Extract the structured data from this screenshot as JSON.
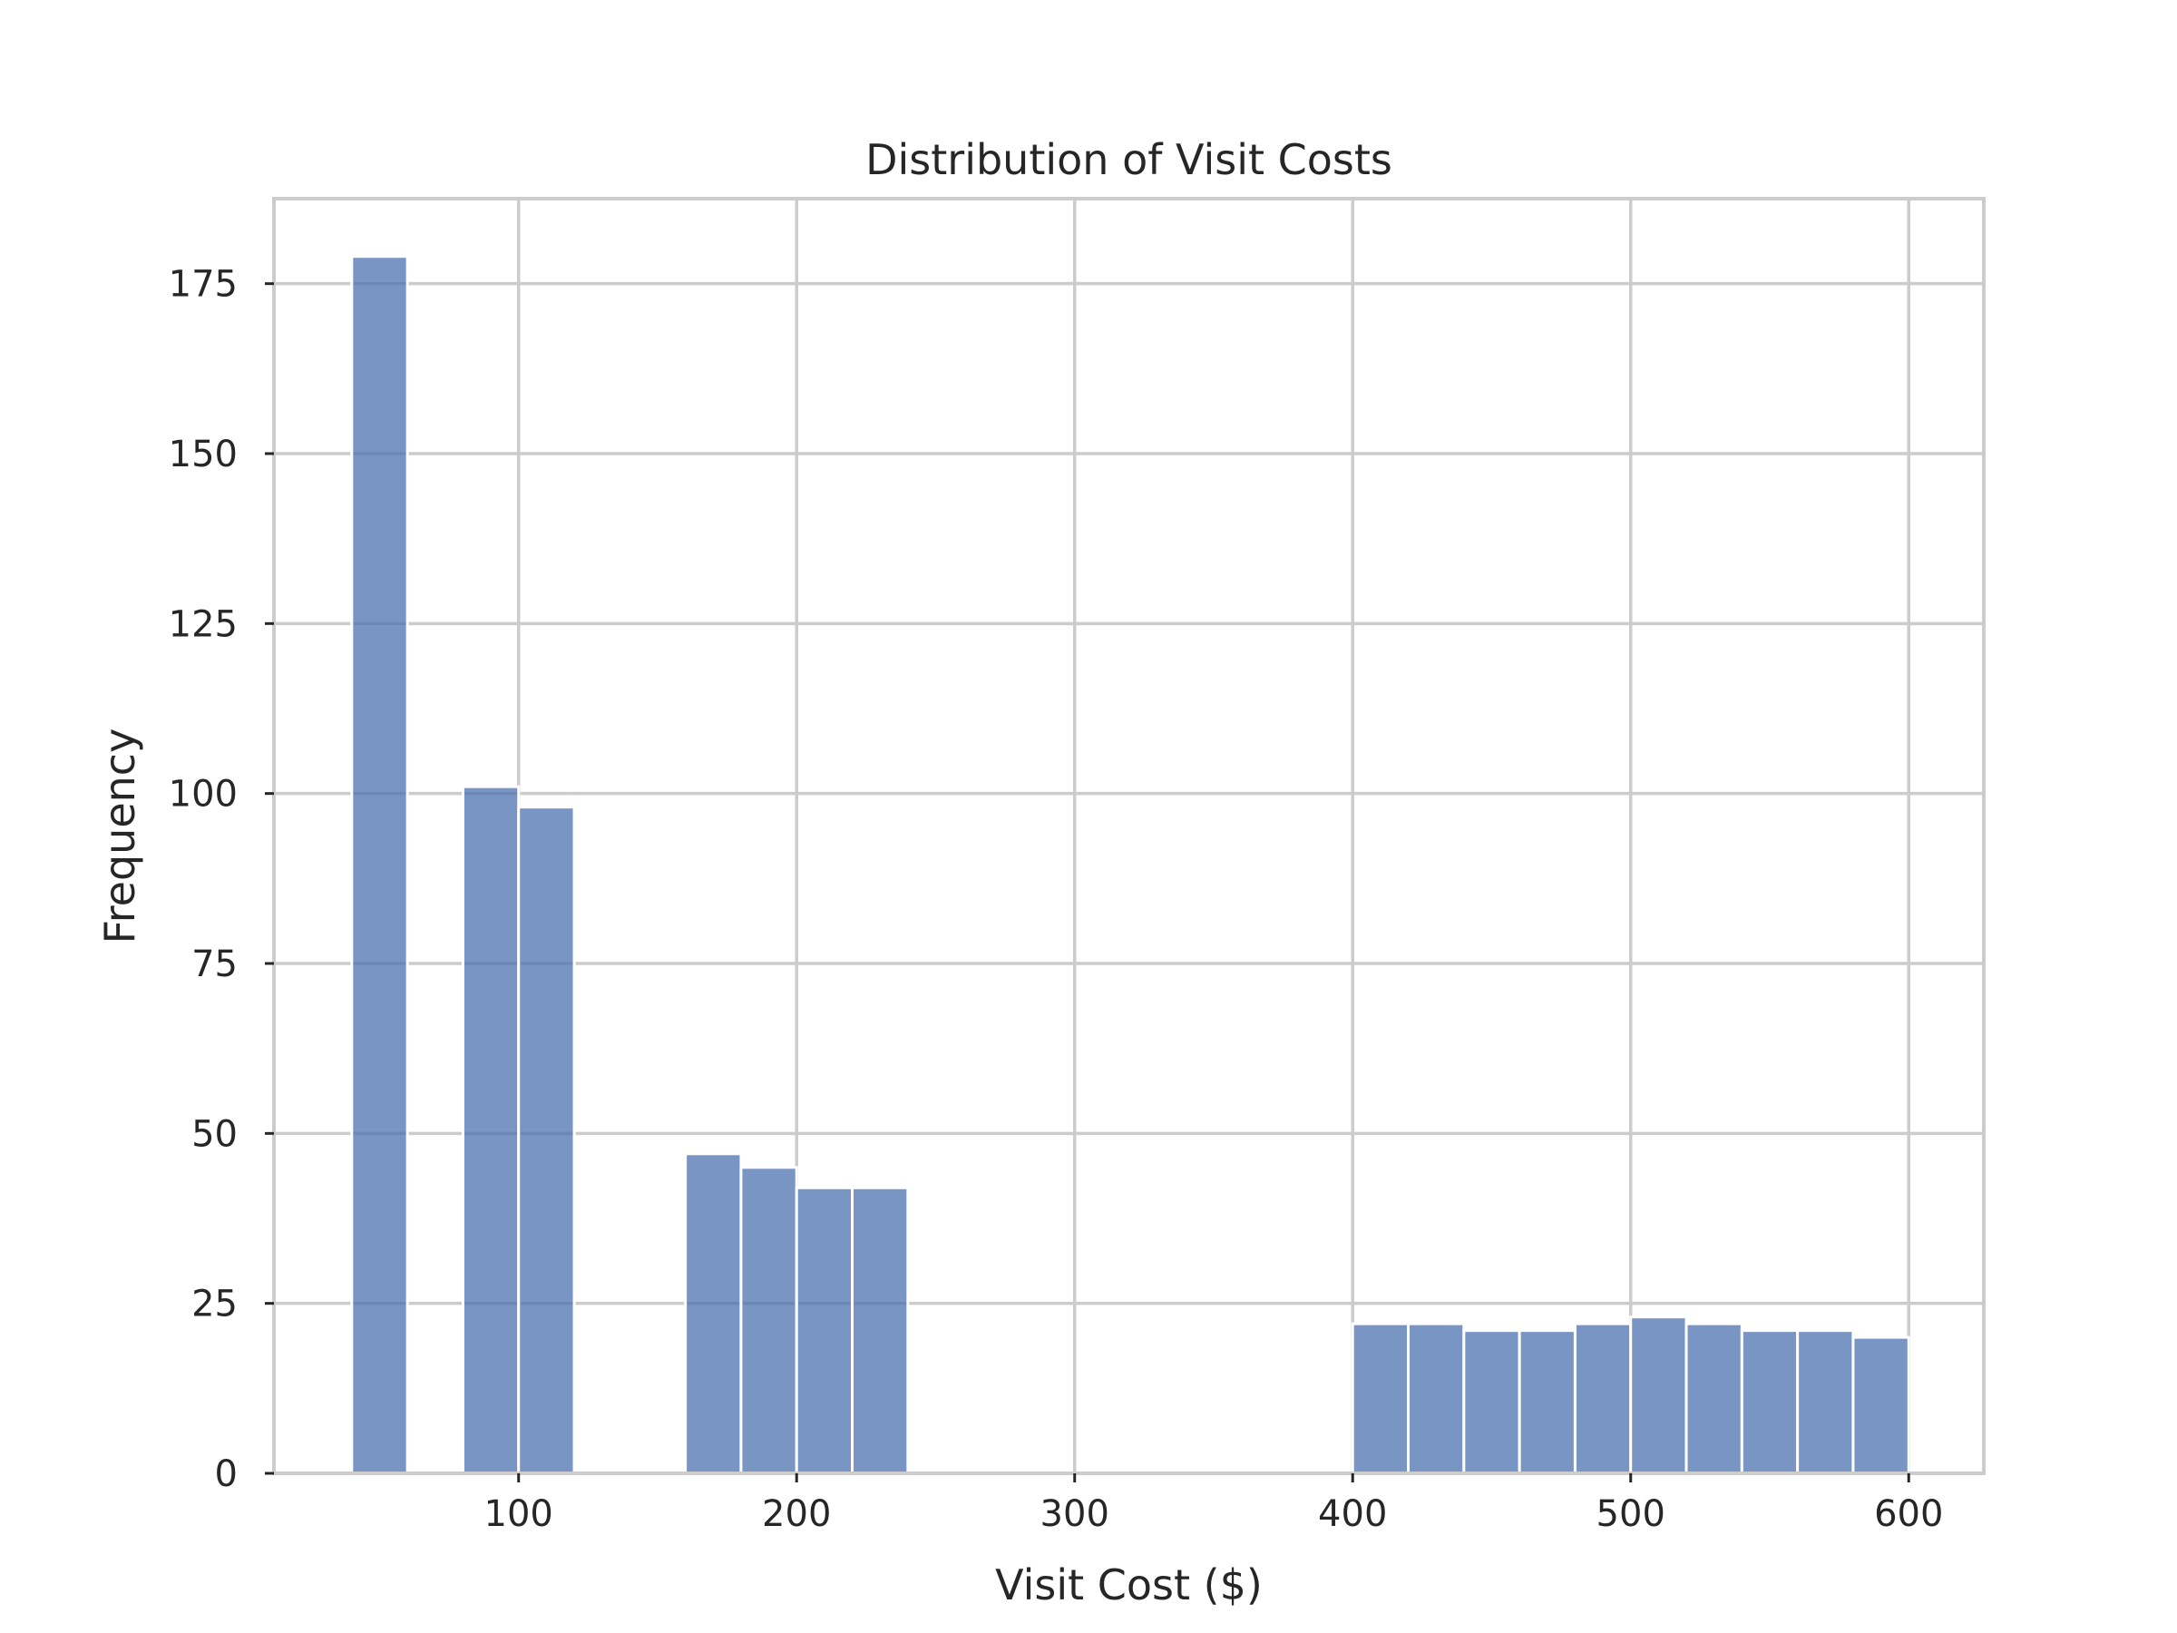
{
  "chart_data": {
    "type": "bar",
    "title": "Distribution of Visit Costs",
    "xlabel": "Visit Cost ($)",
    "ylabel": "Frequency",
    "xlim": [
      12,
      627
    ],
    "ylim": [
      0,
      187.5
    ],
    "xticks": [
      100,
      200,
      300,
      400,
      500,
      600
    ],
    "yticks": [
      0,
      25,
      50,
      75,
      100,
      125,
      150,
      175
    ],
    "grid": true,
    "bar_color": "#4c72b0",
    "bar_opacity": 0.75,
    "edge_color": "#ffffff",
    "bins": [
      {
        "x0": 40,
        "x1": 60,
        "value": 179
      },
      {
        "x0": 60,
        "x1": 80,
        "value": 0
      },
      {
        "x0": 80,
        "x1": 100,
        "value": 101
      },
      {
        "x0": 100,
        "x1": 120,
        "value": 98
      },
      {
        "x0": 120,
        "x1": 140,
        "value": 0
      },
      {
        "x0": 140,
        "x1": 160,
        "value": 0
      },
      {
        "x0": 160,
        "x1": 180,
        "value": 47
      },
      {
        "x0": 180,
        "x1": 200,
        "value": 45
      },
      {
        "x0": 200,
        "x1": 220,
        "value": 42
      },
      {
        "x0": 220,
        "x1": 240,
        "value": 42
      },
      {
        "x0": 240,
        "x1": 260,
        "value": 0
      },
      {
        "x0": 260,
        "x1": 280,
        "value": 0
      },
      {
        "x0": 280,
        "x1": 300,
        "value": 0
      },
      {
        "x0": 300,
        "x1": 320,
        "value": 0
      },
      {
        "x0": 320,
        "x1": 340,
        "value": 0
      },
      {
        "x0": 340,
        "x1": 360,
        "value": 0
      },
      {
        "x0": 360,
        "x1": 380,
        "value": 0
      },
      {
        "x0": 380,
        "x1": 400,
        "value": 0
      },
      {
        "x0": 400,
        "x1": 420,
        "value": 22
      },
      {
        "x0": 420,
        "x1": 440,
        "value": 22
      },
      {
        "x0": 440,
        "x1": 460,
        "value": 21
      },
      {
        "x0": 460,
        "x1": 480,
        "value": 21
      },
      {
        "x0": 480,
        "x1": 500,
        "value": 22
      },
      {
        "x0": 500,
        "x1": 520,
        "value": 23
      },
      {
        "x0": 520,
        "x1": 540,
        "value": 22
      },
      {
        "x0": 540,
        "x1": 560,
        "value": 21
      },
      {
        "x0": 560,
        "x1": 580,
        "value": 21
      },
      {
        "x0": 580,
        "x1": 600,
        "value": 20
      }
    ]
  }
}
